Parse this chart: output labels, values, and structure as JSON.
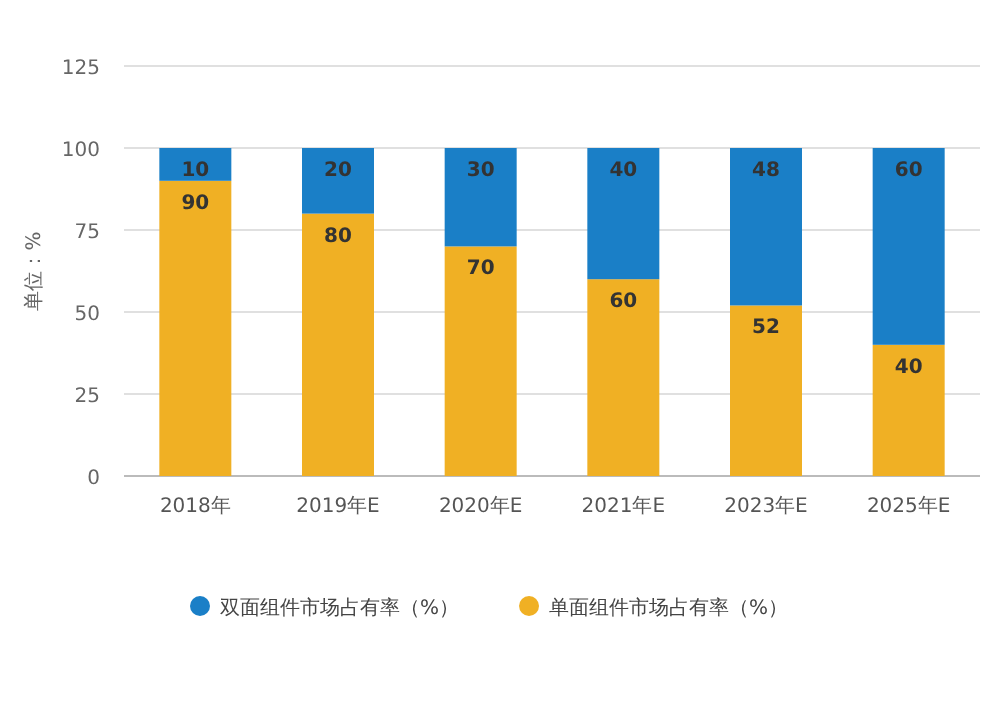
{
  "chart_data": {
    "type": "bar",
    "stacked": true,
    "ylabel": "单位：%",
    "categories": [
      "2018年",
      "2019年E",
      "2020年E",
      "2021年E",
      "2023年E",
      "2025年E"
    ],
    "series": [
      {
        "name": "单面组件市场占有率（%）",
        "color": "#f0b024",
        "values": [
          90,
          80,
          70,
          60,
          52,
          40
        ]
      },
      {
        "name": "双面组件市场占有率（%）",
        "color": "#1a7fc7",
        "values": [
          10,
          20,
          30,
          40,
          48,
          60
        ]
      }
    ],
    "ylim": [
      0,
      125
    ],
    "yticks": [
      0,
      25,
      50,
      75,
      100,
      125
    ],
    "grid": "y",
    "legend": "bottom",
    "data_labels": true
  }
}
